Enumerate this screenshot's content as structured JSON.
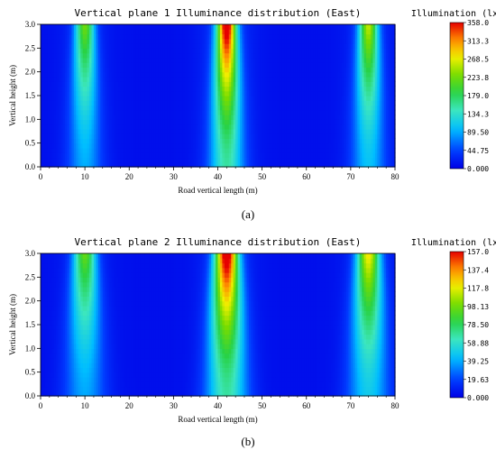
{
  "chart_data": [
    {
      "type": "heatmap",
      "panel": "(a)",
      "title": "Vertical plane 1 Illuminance distribution (East)",
      "xlabel": "Road vertical length (m)",
      "ylabel": "Vertical height (m)",
      "xlim": [
        0,
        80
      ],
      "ylim": [
        0,
        3.0
      ],
      "xticks": [
        "0",
        "10",
        "20",
        "30",
        "40",
        "50",
        "60",
        "70",
        "80"
      ],
      "yticks": [
        "0.0",
        "0.5",
        "1.0",
        "1.5",
        "2.0",
        "2.5",
        "3.0"
      ],
      "colorbar_title": "Illumination (lx)",
      "colorbar_ticks": [
        "358.0",
        "313.3",
        "268.5",
        "223.8",
        "179.0",
        "134.3",
        "89.50",
        "44.75",
        "0.000"
      ],
      "zmax": 358.0,
      "peaks": [
        {
          "x": 10,
          "peak": 200,
          "wide": false
        },
        {
          "x": 42,
          "peak": 358,
          "wide": false
        },
        {
          "x": 74,
          "peak": 230,
          "wide": false
        }
      ]
    },
    {
      "type": "heatmap",
      "panel": "(b)",
      "title": "Vertical plane 2 Illuminance distribution (East)",
      "xlabel": "Road vertical length (m)",
      "ylabel": "Vertical height (m)",
      "xlim": [
        0,
        80
      ],
      "ylim": [
        0,
        3.0
      ],
      "xticks": [
        "0",
        "10",
        "20",
        "30",
        "40",
        "50",
        "60",
        "70",
        "80"
      ],
      "yticks": [
        "0.0",
        "0.5",
        "1.0",
        "1.5",
        "2.0",
        "2.5",
        "3.0"
      ],
      "colorbar_title": "Illumination (lx)",
      "colorbar_ticks": [
        "157.0",
        "137.4",
        "117.8",
        "98.13",
        "78.50",
        "58.88",
        "39.25",
        "19.63",
        "0.000"
      ],
      "zmax": 157.0,
      "peaks": [
        {
          "x": 10,
          "peak": 85,
          "wide": true
        },
        {
          "x": 42,
          "peak": 157,
          "wide": true
        },
        {
          "x": 74,
          "peak": 110,
          "wide": true
        }
      ]
    }
  ]
}
